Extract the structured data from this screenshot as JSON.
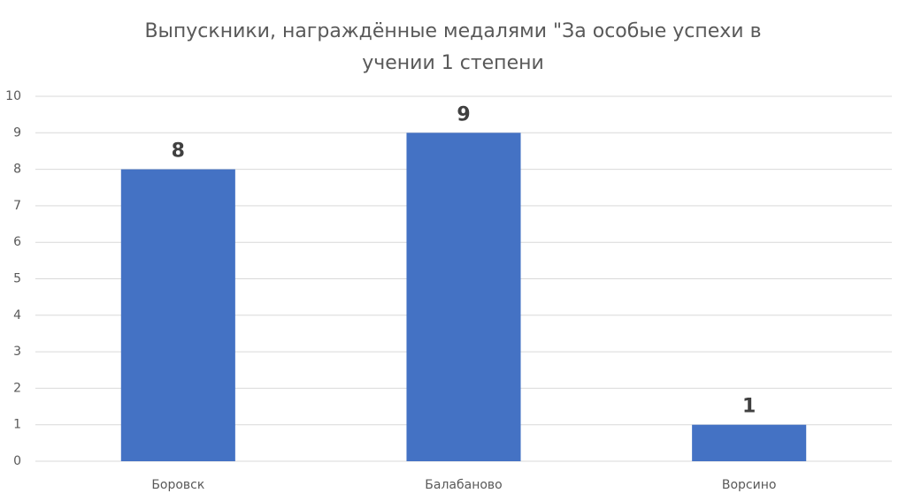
{
  "chart_data": {
    "type": "bar",
    "title": "Выпускники, награждённые медалями \"За особые успехи в учении 1 степени",
    "categories": [
      "Боровск",
      "Балабаново",
      "Ворсино"
    ],
    "values": [
      8,
      9,
      1
    ],
    "color": "#4472c4",
    "ylim": [
      0,
      10
    ],
    "yticks": [
      0,
      1,
      2,
      3,
      4,
      5,
      6,
      7,
      8,
      9,
      10
    ],
    "grid": true
  }
}
